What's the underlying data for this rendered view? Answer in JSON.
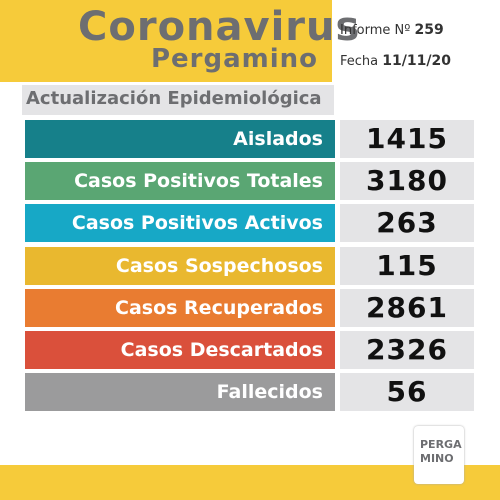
{
  "header": {
    "title": "Coronavirus",
    "subtitle": "Pergamino",
    "report_label": "Informe Nº",
    "report_number": "259",
    "date_label": "Fecha",
    "date": "11/11/20"
  },
  "section_title": "Actualización Epidemiológica",
  "table": {
    "rows": [
      {
        "label": "Aislados",
        "value": "1415",
        "color": "#16808a"
      },
      {
        "label": "Casos Positivos Totales",
        "value": "3180",
        "color": "#5aa673"
      },
      {
        "label": "Casos Positivos Activos",
        "value": "263",
        "color": "#17a8c6"
      },
      {
        "label": "Casos Sospechosos",
        "value": "115",
        "color": "#e9b82f"
      },
      {
        "label": "Casos Recuperados",
        "value": "2861",
        "color": "#e97c31"
      },
      {
        "label": "Casos Descartados",
        "value": "2326",
        "color": "#da503b"
      },
      {
        "label": "Fallecidos",
        "value": "56",
        "color": "#9b9b9c"
      }
    ]
  },
  "logo": {
    "line1": "PERGA",
    "line2": "MINO"
  }
}
